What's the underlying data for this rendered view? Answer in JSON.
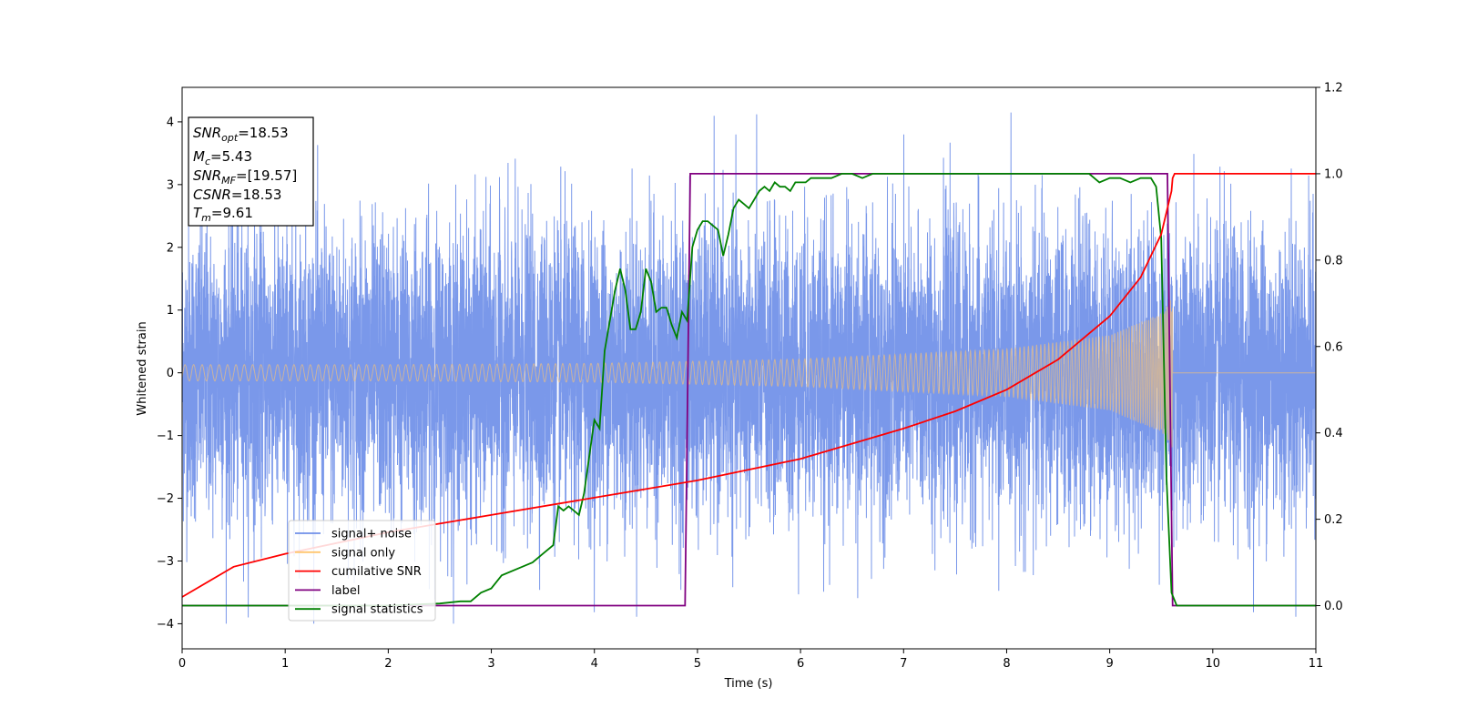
{
  "chart_data": {
    "type": "line",
    "xlabel": "Time (s)",
    "ylabel": "Whitened strain",
    "xlim": [
      0,
      11
    ],
    "ylim_left": [
      -4.4,
      4.55
    ],
    "ylim_right": [
      -0.1,
      1.2
    ],
    "x_ticks": [
      0,
      1,
      2,
      3,
      4,
      5,
      6,
      7,
      8,
      9,
      10,
      11
    ],
    "y_ticks_left": [
      -4,
      -3,
      -2,
      -1,
      0,
      1,
      2,
      3,
      4
    ],
    "y_ticks_right": [
      0.0,
      0.2,
      0.4,
      0.6,
      0.8,
      1.0,
      1.2
    ],
    "legend_position": "lower-left",
    "grid": false,
    "info_box": {
      "lines": [
        {
          "name": "SNR",
          "sub": "opt",
          "value": "=18.53"
        },
        {
          "name": "M",
          "sub": "c",
          "value": "=5.43"
        },
        {
          "name": "SNR",
          "sub": "MF",
          "value": "=[19.57]"
        },
        {
          "name": "CSNR",
          "sub": "",
          "value": "=18.53"
        },
        {
          "name": "T",
          "sub": "m",
          "value": "=9.61"
        }
      ]
    },
    "legend": [
      {
        "key": "noise",
        "label": "signal+ noise",
        "color": "#6f8fe8"
      },
      {
        "key": "signal",
        "label": "signal only",
        "color": "#ffc56e"
      },
      {
        "key": "csnr",
        "label": "cumilative SNR",
        "color": "#ff0000"
      },
      {
        "key": "label",
        "label": "label",
        "color": "#800080"
      },
      {
        "key": "stat",
        "label": "signal statistics",
        "color": "#008000"
      }
    ],
    "series": [
      {
        "name": "signal+ noise",
        "axis": "left",
        "std": 1.15,
        "amplitude_range": [
          -4.0,
          4.15
        ]
      },
      {
        "name": "signal only",
        "axis": "left",
        "start": 0,
        "end": 9.61,
        "envelope": [
          [
            0,
            0.13
          ],
          [
            2,
            0.13
          ],
          [
            4,
            0.15
          ],
          [
            6,
            0.22
          ],
          [
            8,
            0.38
          ],
          [
            9,
            0.6
          ],
          [
            9.5,
            0.95
          ],
          [
            9.61,
            1.2
          ]
        ]
      },
      {
        "name": "cumilative SNR",
        "axis": "right",
        "x": [
          0,
          0.5,
          1,
          2,
          3,
          4,
          5,
          6,
          7,
          7.5,
          8,
          8.5,
          9,
          9.3,
          9.5,
          9.6,
          9.61,
          9.63,
          11
        ],
        "y": [
          0.02,
          0.09,
          0.12,
          0.17,
          0.21,
          0.25,
          0.29,
          0.34,
          0.41,
          0.45,
          0.5,
          0.57,
          0.67,
          0.76,
          0.86,
          0.96,
          0.99,
          1.0,
          1.0
        ]
      },
      {
        "name": "label",
        "axis": "right",
        "x": [
          0,
          4.88,
          4.93,
          9.56,
          9.61,
          11
        ],
        "y": [
          0,
          0,
          1,
          1,
          0,
          0
        ]
      },
      {
        "name": "signal statistics",
        "axis": "right",
        "x": [
          0,
          1,
          2,
          2.5,
          2.7,
          2.8,
          2.9,
          3.0,
          3.1,
          3.3,
          3.4,
          3.5,
          3.6,
          3.65,
          3.7,
          3.75,
          3.8,
          3.85,
          3.9,
          4.0,
          4.05,
          4.1,
          4.15,
          4.2,
          4.25,
          4.3,
          4.35,
          4.4,
          4.45,
          4.5,
          4.55,
          4.6,
          4.65,
          4.7,
          4.75,
          4.8,
          4.85,
          4.9,
          4.95,
          5.0,
          5.05,
          5.1,
          5.15,
          5.2,
          5.25,
          5.3,
          5.35,
          5.4,
          5.45,
          5.5,
          5.55,
          5.6,
          5.65,
          5.7,
          5.75,
          5.8,
          5.85,
          5.9,
          5.95,
          6.0,
          6.05,
          6.1,
          6.2,
          6.3,
          6.4,
          6.5,
          6.6,
          6.7,
          6.8,
          7.0,
          7.2,
          7.5,
          8.0,
          8.5,
          8.8,
          8.9,
          9.0,
          9.1,
          9.2,
          9.3,
          9.4,
          9.45,
          9.5,
          9.55,
          9.6,
          9.65,
          11
        ],
        "y": [
          0.0,
          0.0,
          0.0,
          0.005,
          0.01,
          0.01,
          0.03,
          0.04,
          0.07,
          0.09,
          0.1,
          0.12,
          0.14,
          0.23,
          0.22,
          0.23,
          0.22,
          0.21,
          0.26,
          0.43,
          0.41,
          0.59,
          0.66,
          0.73,
          0.78,
          0.73,
          0.64,
          0.64,
          0.68,
          0.78,
          0.75,
          0.68,
          0.69,
          0.69,
          0.65,
          0.62,
          0.68,
          0.66,
          0.83,
          0.87,
          0.89,
          0.89,
          0.88,
          0.87,
          0.81,
          0.86,
          0.92,
          0.94,
          0.93,
          0.92,
          0.94,
          0.96,
          0.97,
          0.96,
          0.98,
          0.97,
          0.97,
          0.96,
          0.98,
          0.98,
          0.98,
          0.99,
          0.99,
          0.99,
          1.0,
          1.0,
          0.99,
          1.0,
          1.0,
          1.0,
          1.0,
          1.0,
          1.0,
          1.0,
          1.0,
          0.98,
          0.99,
          0.99,
          0.98,
          0.99,
          0.99,
          0.97,
          0.85,
          0.3,
          0.03,
          0.0,
          0.0
        ]
      }
    ]
  }
}
